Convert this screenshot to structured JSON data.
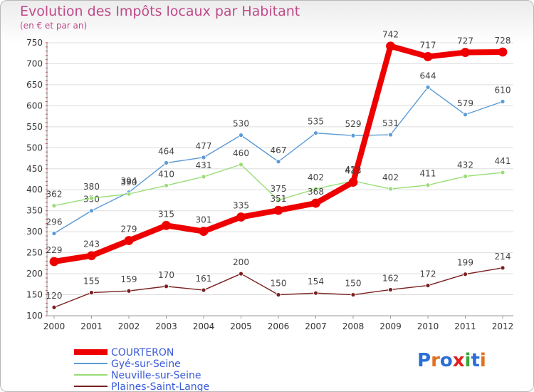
{
  "title": "Evolution des Impôts locaux par Habitant",
  "subtitle": "(en € et par an)",
  "logo": {
    "text": "Proxiti",
    "colors": [
      "#2b6fd6",
      "#e07020",
      "#2b6fd6",
      "#e02020",
      "#3aa83a",
      "#2b6fd6",
      "#e07020"
    ]
  },
  "chart_data": {
    "type": "line",
    "x": [
      2000,
      2001,
      2002,
      2003,
      2004,
      2005,
      2006,
      2007,
      2008,
      2009,
      2010,
      2011,
      2012
    ],
    "ylim": [
      100,
      750
    ],
    "yticks": [
      100,
      150,
      200,
      250,
      300,
      350,
      400,
      450,
      500,
      550,
      600,
      650,
      700,
      750
    ],
    "grid": "horizontal",
    "legend_position": "bottom-left",
    "series": [
      {
        "name": "COURTERON",
        "color": "#ee0000",
        "width": 8,
        "values": [
          229,
          243,
          279,
          315,
          301,
          335,
          351,
          368,
          418,
          742,
          717,
          727,
          728
        ]
      },
      {
        "name": "Gyé-sur-Seine",
        "color": "#5b9bd5",
        "width": 1.4,
        "values": [
          296,
          350,
          394,
          464,
          477,
          530,
          467,
          535,
          529,
          531,
          644,
          579,
          610
        ]
      },
      {
        "name": "Neuville-sur-Seine",
        "color": "#99dd77",
        "width": 1.4,
        "values": [
          362,
          380,
          390,
          410,
          431,
          460,
          375,
          402,
          421,
          402,
          411,
          432,
          441
        ]
      },
      {
        "name": "Plaines-Saint-Lange",
        "color": "#7a1f1f",
        "width": 1.4,
        "values": [
          120,
          155,
          159,
          170,
          161,
          200,
          150,
          154,
          150,
          162,
          172,
          199,
          214
        ]
      }
    ]
  }
}
